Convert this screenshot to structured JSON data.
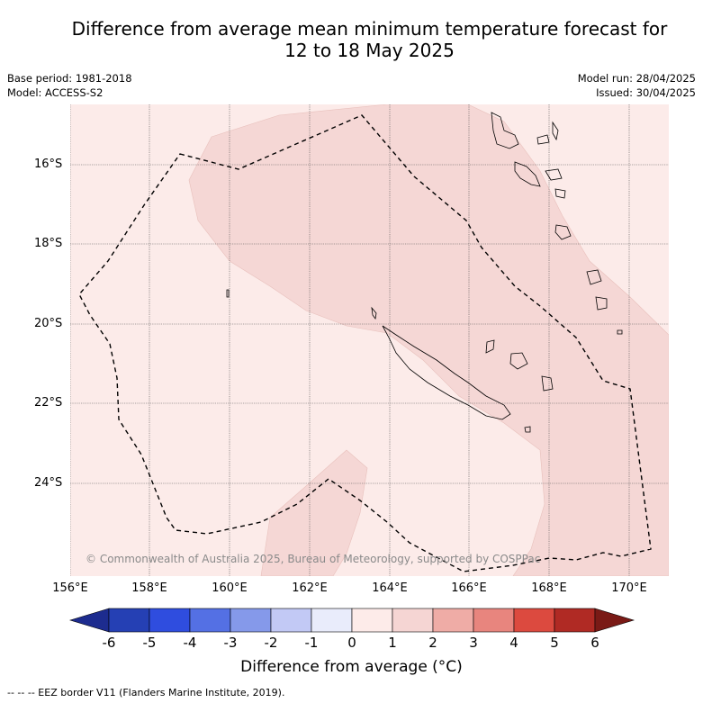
{
  "title": {
    "line1": "Difference from average mean minimum temperature forecast for",
    "line2": "12 to 18 May 2025"
  },
  "meta_left": {
    "base_period": "Base period: 1981-2018",
    "model": "Model: ACCESS-S2"
  },
  "meta_right": {
    "model_run": "Model run: 28/04/2025",
    "issued": "Issued: 30/04/2025"
  },
  "axes": {
    "lat_labels": [
      "16°S",
      "18°S",
      "20°S",
      "22°S",
      "24°S"
    ],
    "lon_labels": [
      "156°E",
      "158°E",
      "160°E",
      "162°E",
      "164°E",
      "166°E",
      "168°E",
      "170°E"
    ]
  },
  "colors": {
    "band_0_1": "#fcebe9",
    "band_1_2": "#f5d7d5",
    "eez_line": "#000000"
  },
  "attribution": "© Commonwealth of Australia 2025, Bureau of Meteorology, supported by COSPPac",
  "colorbar": {
    "ticks": [
      "-6",
      "-5",
      "-4",
      "-3",
      "-2",
      "-1",
      "0",
      "1",
      "2",
      "3",
      "4",
      "5",
      "6"
    ],
    "colors": [
      "#1d2c8f",
      "#2540b4",
      "#2f4ddf",
      "#5470e4",
      "#8599ea",
      "#c2c9f5",
      "#e9ecfb",
      "#fdebe9",
      "#f5d5d3",
      "#efaca6",
      "#e8857e",
      "#dc4a3f",
      "#b02a24",
      "#7a1a16"
    ],
    "label": "Difference from average (°C)"
  },
  "legend_text": "-- -- -- EEZ border V11 (Flanders Marine Institute, 2019)."
}
